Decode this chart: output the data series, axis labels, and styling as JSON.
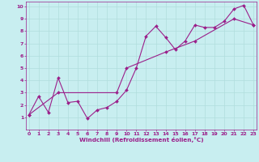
{
  "line1_x": [
    0,
    1,
    2,
    3,
    4,
    5,
    6,
    7,
    8,
    9,
    10,
    11,
    12,
    13,
    14,
    15,
    16,
    17,
    18,
    19,
    20,
    21,
    22,
    23
  ],
  "line1_y": [
    1.2,
    2.7,
    1.4,
    4.2,
    2.2,
    2.3,
    0.9,
    1.6,
    1.8,
    2.3,
    3.2,
    5.0,
    7.6,
    8.4,
    7.5,
    6.5,
    7.2,
    8.5,
    8.3,
    8.3,
    8.8,
    9.8,
    10.1,
    8.5
  ],
  "line2_x": [
    0,
    3,
    9,
    10,
    14,
    17,
    21,
    23
  ],
  "line2_y": [
    1.2,
    3.0,
    3.0,
    5.0,
    6.3,
    7.2,
    9.0,
    8.5
  ],
  "xlim": [
    -0.3,
    23.3
  ],
  "ylim": [
    0,
    10.4
  ],
  "xticks": [
    0,
    1,
    2,
    3,
    4,
    5,
    6,
    7,
    8,
    9,
    10,
    11,
    12,
    13,
    14,
    15,
    16,
    17,
    18,
    19,
    20,
    21,
    22,
    23
  ],
  "yticks": [
    1,
    2,
    3,
    4,
    5,
    6,
    7,
    8,
    9,
    10
  ],
  "xlabel": "Windchill (Refroidissement éolien,°C)",
  "line_color": "#9B1F8A",
  "bg_color": "#C8EEF0",
  "grid_color": "#B0DDDD",
  "marker": "D",
  "markersize": 2.0,
  "linewidth": 0.8,
  "tick_fontsize": 4.5,
  "xlabel_fontsize": 5.2
}
